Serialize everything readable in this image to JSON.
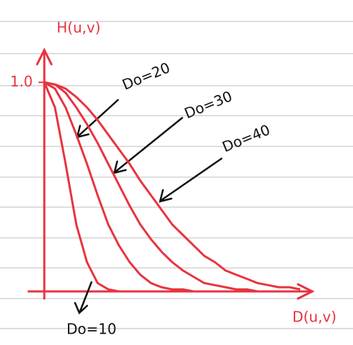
{
  "chart_data": {
    "type": "line",
    "y_label": "H(u,v)",
    "x_label": "D(u,v)",
    "xlim": [
      0,
      125
    ],
    "ylim": [
      0,
      1.1
    ],
    "yticks": [
      {
        "value": 1,
        "label": "1.0"
      }
    ],
    "x": [
      0,
      5,
      10,
      15,
      20,
      25,
      30,
      35,
      40,
      45,
      50,
      55,
      60,
      65,
      70,
      75,
      80,
      85,
      90,
      95,
      100,
      105,
      110,
      115,
      120
    ],
    "series": [
      {
        "name": "Do=10",
        "color": "#e8333f",
        "values": [
          1,
          0.88,
          0.61,
          0.32,
          0.14,
          0.04,
          0.01,
          0,
          0,
          0,
          0,
          0,
          0,
          0,
          0,
          0,
          0,
          0,
          0,
          0,
          0,
          0,
          0,
          0,
          0
        ]
      },
      {
        "name": "Do=20",
        "color": "#e8333f",
        "values": [
          1,
          0.97,
          0.88,
          0.75,
          0.61,
          0.46,
          0.32,
          0.22,
          0.14,
          0.08,
          0.04,
          0.02,
          0.01,
          0.01,
          0,
          0,
          0,
          0,
          0,
          0,
          0,
          0,
          0,
          0,
          0
        ]
      },
      {
        "name": "Do=30",
        "color": "#e8333f",
        "values": [
          1,
          0.99,
          0.95,
          0.88,
          0.8,
          0.71,
          0.61,
          0.51,
          0.41,
          0.32,
          0.25,
          0.19,
          0.14,
          0.1,
          0.07,
          0.04,
          0.03,
          0.02,
          0.01,
          0.01,
          0,
          0,
          0,
          0,
          0
        ]
      },
      {
        "name": "Do=40",
        "color": "#e8333f",
        "values": [
          1,
          0.99,
          0.97,
          0.93,
          0.88,
          0.82,
          0.75,
          0.68,
          0.61,
          0.53,
          0.46,
          0.39,
          0.32,
          0.27,
          0.22,
          0.17,
          0.14,
          0.1,
          0.08,
          0.06,
          0.04,
          0.03,
          0.02,
          0.02,
          0.01
        ]
      }
    ]
  }
}
